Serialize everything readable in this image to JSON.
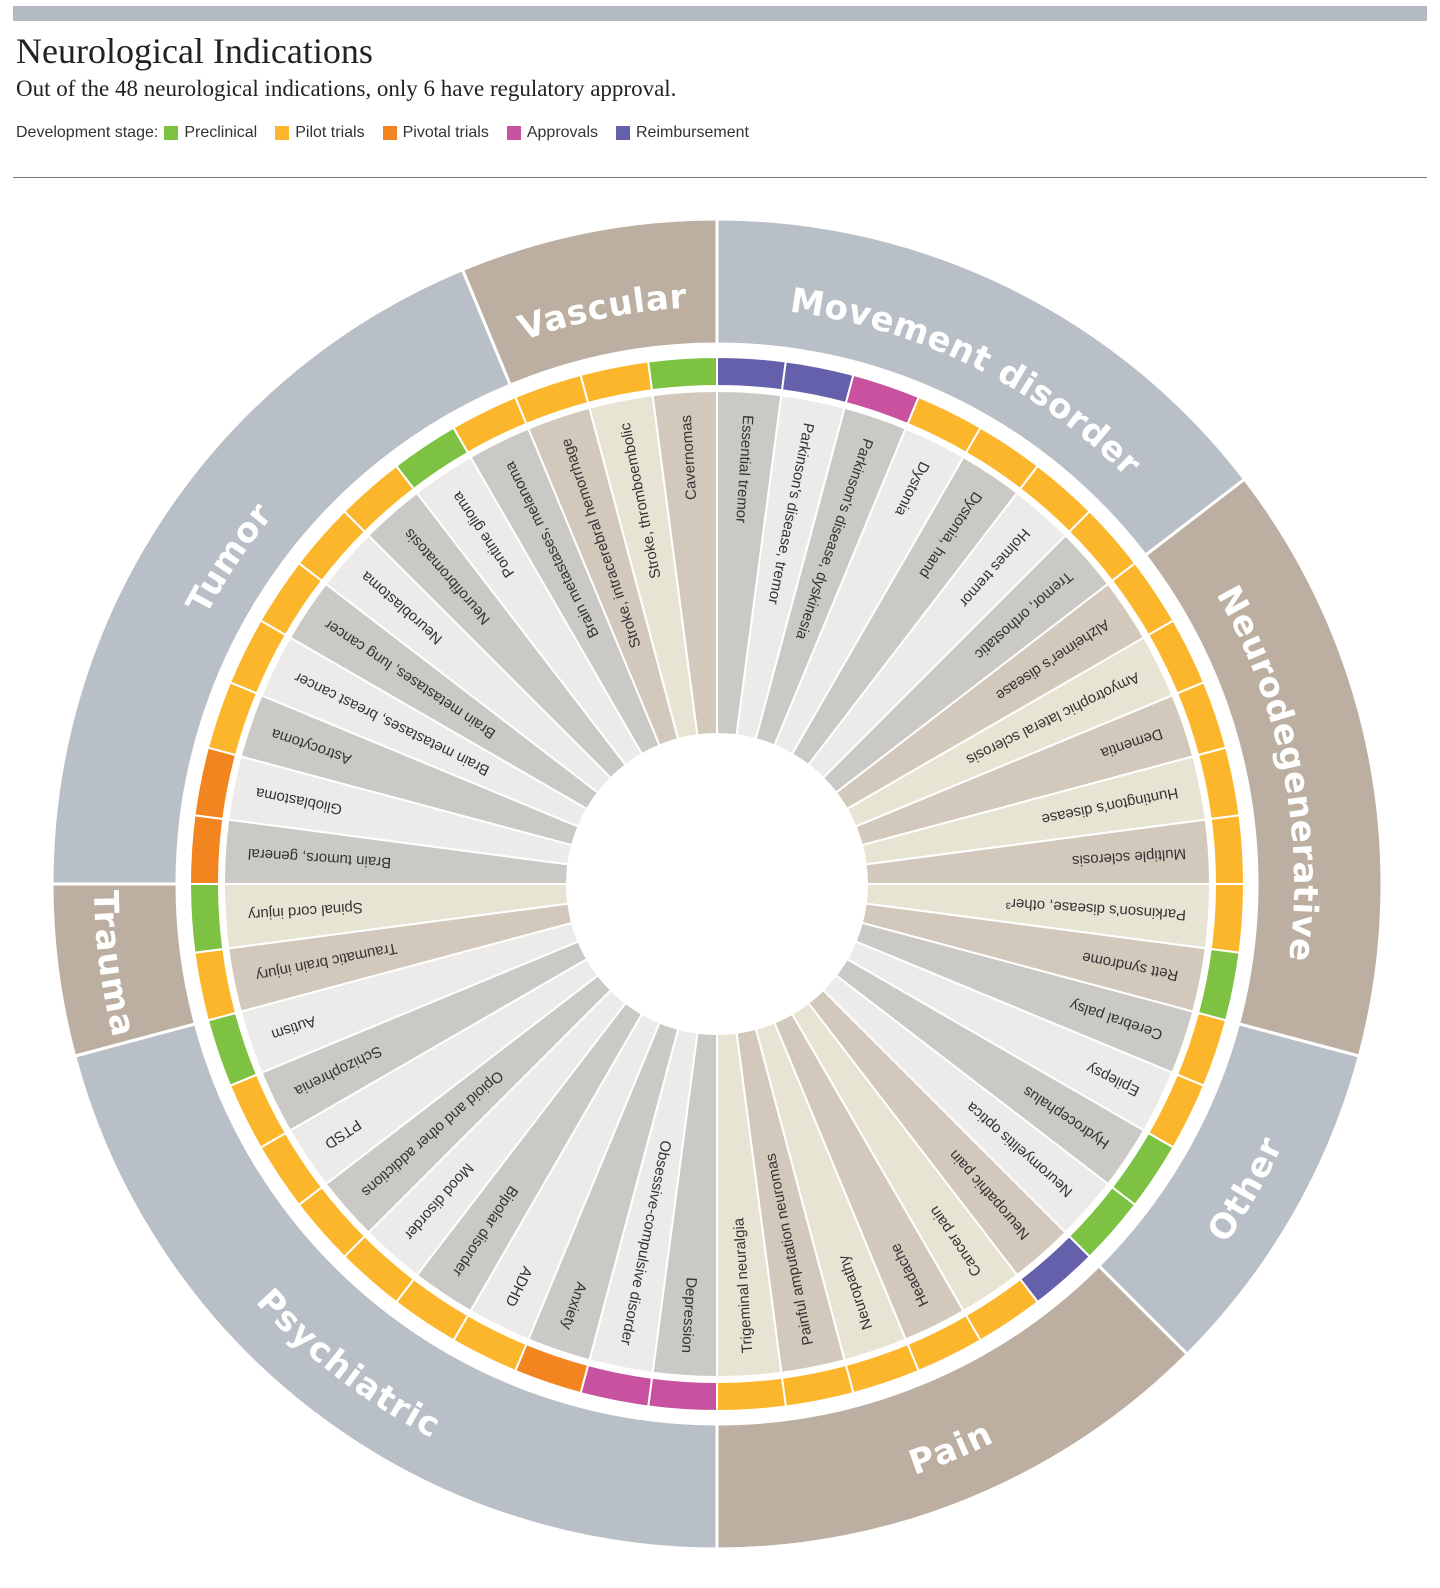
{
  "header": {
    "title": "Neurological Indications",
    "subtitle": "Out of the 48 neurological indications, only 6 have regulatory approval."
  },
  "legend": {
    "label": "Development stage:",
    "items": [
      {
        "key": "preclinical",
        "label": "Preclinical",
        "color": "#7dc243"
      },
      {
        "key": "pilot",
        "label": "Pilot trials",
        "color": "#fbb62b"
      },
      {
        "key": "pivotal",
        "label": "Pivotal trials",
        "color": "#f2851f"
      },
      {
        "key": "approvals",
        "label": "Approvals",
        "color": "#c852a0"
      },
      {
        "key": "reimbursement",
        "label": "Reimbursement",
        "color": "#6560ac"
      }
    ]
  },
  "chart_data": {
    "type": "radial",
    "groups": [
      {
        "name": "Movement disorder",
        "color": "#b9bfc6"
      },
      {
        "name": "Neurodegenerative",
        "color": "#bcaea0"
      },
      {
        "name": "Other",
        "color": "#b9bfc6"
      },
      {
        "name": "Pain",
        "color": "#bcaea0"
      },
      {
        "name": "Psychiatric",
        "color": "#b9bfc6"
      },
      {
        "name": "Trauma",
        "color": "#bcaea0"
      },
      {
        "name": "Tumor",
        "color": "#b9bfc6"
      },
      {
        "name": "Vascular",
        "color": "#bcaea0"
      }
    ],
    "indications": [
      {
        "label": "Essential tremor",
        "group": "Movement disorder",
        "stage": "reimbursement",
        "fill": "#cbc9c6"
      },
      {
        "label": "Parkinson's disease, tremor",
        "group": "Movement disorder",
        "stage": "reimbursement",
        "fill": "#ecebe9"
      },
      {
        "label": "Parkinson's disease, dyskinesia",
        "group": "Movement disorder",
        "stage": "approvals",
        "fill": "#cbc9c6"
      },
      {
        "label": "Dystonia",
        "group": "Movement disorder",
        "stage": "pilot",
        "fill": "#ecebe9"
      },
      {
        "label": "Dystonia, hand",
        "group": "Movement disorder",
        "stage": "pilot",
        "fill": "#cbc9c6"
      },
      {
        "label": "Holmes tremor",
        "group": "Movement disorder",
        "stage": "pilot",
        "fill": "#ecebe9"
      },
      {
        "label": "Tremor, orthostatic",
        "group": "Movement disorder",
        "stage": "pilot",
        "fill": "#cbc9c6"
      },
      {
        "label": "Alzheimer's disease",
        "group": "Neurodegenerative",
        "stage": "pilot",
        "fill": "#d3c8bc"
      },
      {
        "label": "Amyotrophic lateral sclerosis",
        "group": "Neurodegenerative",
        "stage": "pilot",
        "fill": "#e8e4d3"
      },
      {
        "label": "Dementia",
        "group": "Neurodegenerative",
        "stage": "pilot",
        "fill": "#d3c8bc"
      },
      {
        "label": "Huntington's disease",
        "group": "Neurodegenerative",
        "stage": "pilot",
        "fill": "#e8e4d3"
      },
      {
        "label": "Multiple sclerosis",
        "group": "Neurodegenerative",
        "stage": "pilot",
        "fill": "#d3c8bc"
      },
      {
        "label": "Parkinson's disease, other³",
        "group": "Neurodegenerative",
        "stage": "pilot",
        "fill": "#e8e4d3"
      },
      {
        "label": "Rett syndrome",
        "group": "Neurodegenerative",
        "stage": "preclinical",
        "fill": "#d3c8bc"
      },
      {
        "label": "Cerebral palsy",
        "group": "Other",
        "stage": "pilot",
        "fill": "#cbc9c6"
      },
      {
        "label": "Epilepsy",
        "group": "Other",
        "stage": "pilot",
        "fill": "#ecebe9"
      },
      {
        "label": "Hydrocephalus",
        "group": "Other",
        "stage": "preclinical",
        "fill": "#cbc9c6"
      },
      {
        "label": "Neuromyelitis optica",
        "group": "Other",
        "stage": "preclinical",
        "fill": "#ecebe9"
      },
      {
        "label": "Neuropathic pain",
        "group": "Pain",
        "stage": "reimbursement",
        "fill": "#d3c8bc"
      },
      {
        "label": "Cancer pain",
        "group": "Pain",
        "stage": "pilot",
        "fill": "#e8e4d3"
      },
      {
        "label": "Headache",
        "group": "Pain",
        "stage": "pilot",
        "fill": "#d3c8bc"
      },
      {
        "label": "Neuropathy",
        "group": "Pain",
        "stage": "pilot",
        "fill": "#e8e4d3"
      },
      {
        "label": "Painful amputation neuromas",
        "group": "Pain",
        "stage": "pilot",
        "fill": "#d3c8bc"
      },
      {
        "label": "Trigeminal neuralgia",
        "group": "Pain",
        "stage": "pilot",
        "fill": "#e8e4d3"
      },
      {
        "label": "Depression",
        "group": "Psychiatric",
        "stage": "approvals",
        "fill": "#cbc9c6"
      },
      {
        "label": "Obsessive-compulsive disorder",
        "group": "Psychiatric",
        "stage": "approvals",
        "fill": "#ecebe9"
      },
      {
        "label": "Anxiety",
        "group": "Psychiatric",
        "stage": "pivotal",
        "fill": "#cbc9c6"
      },
      {
        "label": "ADHD",
        "group": "Psychiatric",
        "stage": "pilot",
        "fill": "#ecebe9"
      },
      {
        "label": "Bipolar disorder",
        "group": "Psychiatric",
        "stage": "pilot",
        "fill": "#cbc9c6"
      },
      {
        "label": "Mood disorder",
        "group": "Psychiatric",
        "stage": "pilot",
        "fill": "#ecebe9"
      },
      {
        "label": "Opioid and other addictions",
        "group": "Psychiatric",
        "stage": "pilot",
        "fill": "#cbc9c6"
      },
      {
        "label": "PTSD",
        "group": "Psychiatric",
        "stage": "pilot",
        "fill": "#ecebe9"
      },
      {
        "label": "Schizophrenia",
        "group": "Psychiatric",
        "stage": "pilot",
        "fill": "#cbc9c6"
      },
      {
        "label": "Autism",
        "group": "Psychiatric",
        "stage": "preclinical",
        "fill": "#ecebe9"
      },
      {
        "label": "Traumatic brain injury",
        "group": "Trauma",
        "stage": "pilot",
        "fill": "#d3c8bc"
      },
      {
        "label": "Spinal cord injury",
        "group": "Trauma",
        "stage": "preclinical",
        "fill": "#e8e4d3"
      },
      {
        "label": "Brain tumors, general",
        "group": "Tumor",
        "stage": "pivotal",
        "fill": "#cbc9c6"
      },
      {
        "label": "Glioblastoma",
        "group": "Tumor",
        "stage": "pivotal",
        "fill": "#ecebe9"
      },
      {
        "label": "Astrocytoma",
        "group": "Tumor",
        "stage": "pilot",
        "fill": "#cbc9c6"
      },
      {
        "label": "Brain metastases, breast cancer",
        "group": "Tumor",
        "stage": "pilot",
        "fill": "#ecebe9"
      },
      {
        "label": "Brain metastases, lung cancer",
        "group": "Tumor",
        "stage": "pilot",
        "fill": "#cbc9c6"
      },
      {
        "label": "Neuroblastoma",
        "group": "Tumor",
        "stage": "pilot",
        "fill": "#ecebe9"
      },
      {
        "label": "Neurofibromatosis",
        "group": "Tumor",
        "stage": "pilot",
        "fill": "#cbc9c6"
      },
      {
        "label": "Pontine glioma",
        "group": "Tumor",
        "stage": "preclinical",
        "fill": "#ecebe9"
      },
      {
        "label": "Brain metastases, melanoma",
        "group": "Tumor",
        "stage": "pilot",
        "fill": "#cbc9c6"
      },
      {
        "label": "Stroke, intracerebral hemorrhage",
        "group": "Vascular",
        "stage": "pilot",
        "fill": "#d3c8bc"
      },
      {
        "label": "Stroke, thromboembolic",
        "group": "Vascular",
        "stage": "pilot",
        "fill": "#e8e4d3"
      },
      {
        "label": "Cavernomas",
        "group": "Vascular",
        "stage": "preclinical",
        "fill": "#d3c8bc"
      }
    ]
  }
}
